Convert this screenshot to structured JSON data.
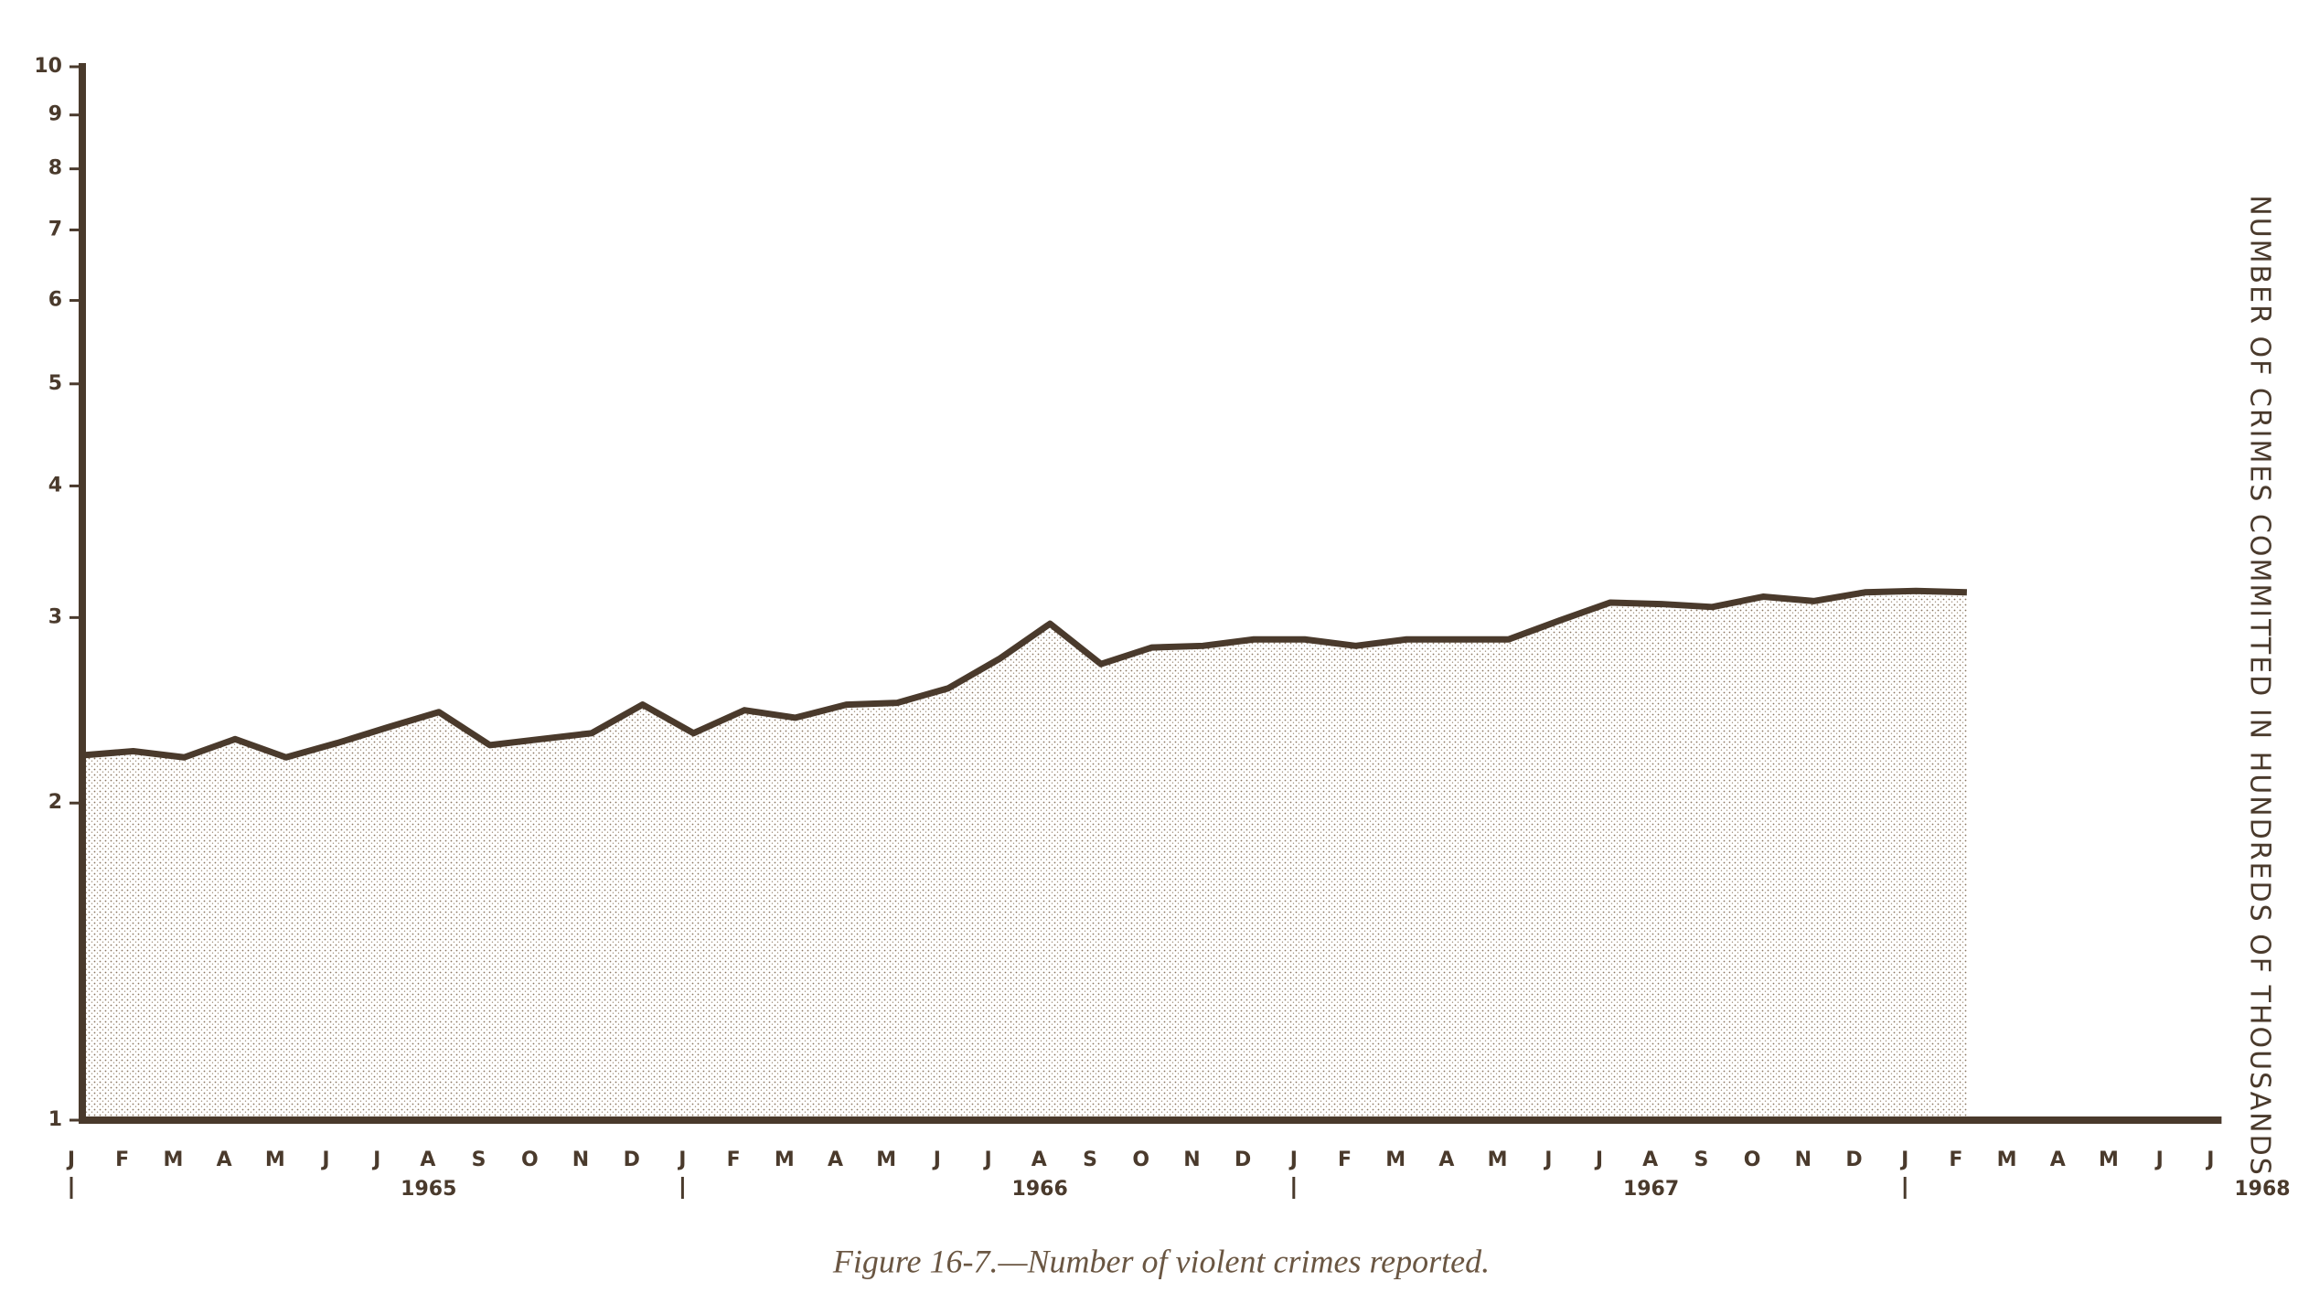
{
  "chart_data": {
    "type": "area",
    "caption": "Figure 16-7.—Number of violent crimes reported.",
    "y_label": "NUMBER OF CRIMES COMMITTED IN HUNDREDS OF THOUSANDS",
    "categories": [
      "J",
      "F",
      "M",
      "A",
      "M",
      "J",
      "J",
      "A",
      "S",
      "O",
      "N",
      "D",
      "J",
      "F",
      "M",
      "A",
      "M",
      "J",
      "J",
      "A",
      "S",
      "O",
      "N",
      "D",
      "J",
      "F",
      "M",
      "A",
      "M",
      "J",
      "J",
      "A",
      "S",
      "O",
      "N",
      "D",
      "J",
      "F",
      "M",
      "A",
      "M",
      "J",
      "J"
    ],
    "years": [
      "1965",
      "1966",
      "1967",
      "1968"
    ],
    "values": [
      2.22,
      2.24,
      2.21,
      2.3,
      2.21,
      2.28,
      2.36,
      2.44,
      2.27,
      2.3,
      2.33,
      2.48,
      2.33,
      2.45,
      2.41,
      2.48,
      2.49,
      2.57,
      2.74,
      2.96,
      2.71,
      2.81,
      2.82,
      2.86,
      2.86,
      2.82,
      2.86,
      2.86,
      2.86,
      2.98,
      3.1,
      3.09,
      3.07,
      3.14,
      3.11,
      3.17,
      3.18,
      3.17,
      null,
      null,
      null,
      null,
      null
    ],
    "color": "#4a3a2c",
    "log_y": true,
    "ylim": [
      1,
      10
    ],
    "yticks": [
      1,
      2,
      3,
      4,
      5,
      6,
      7,
      8,
      9,
      10
    ]
  }
}
